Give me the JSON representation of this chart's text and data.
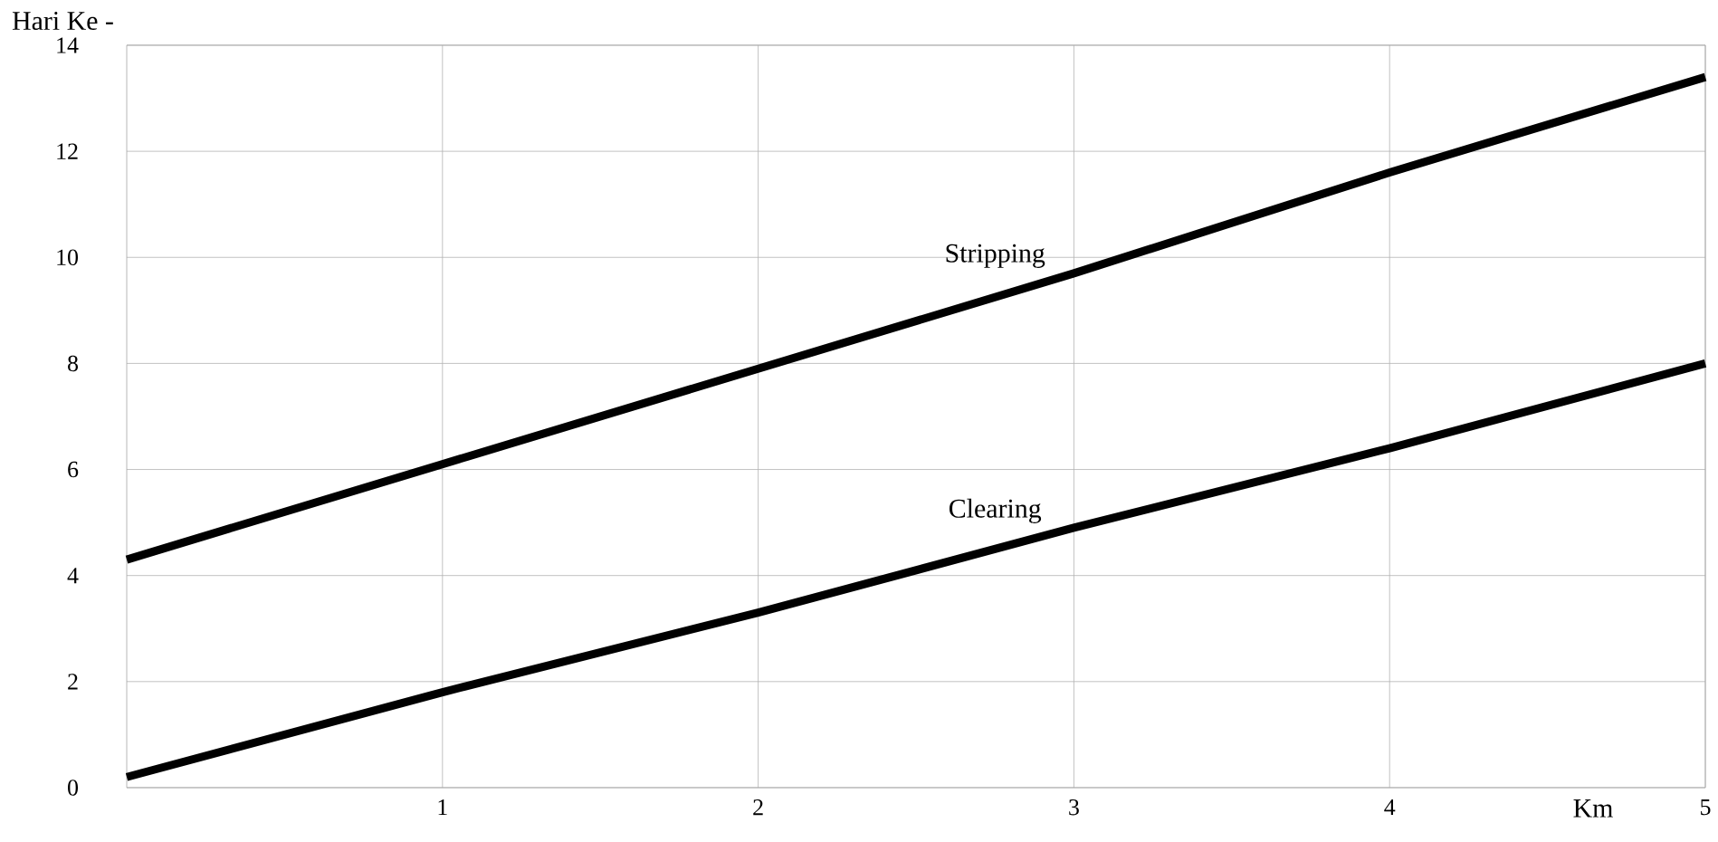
{
  "chart_data": {
    "type": "line",
    "xlabel": "Km",
    "ylabel": "Hari Ke -",
    "xlim": [
      0,
      5
    ],
    "ylim": [
      0,
      14
    ],
    "xticks": [
      1,
      2,
      3,
      4,
      5
    ],
    "yticks": [
      0,
      2,
      4,
      6,
      8,
      10,
      12,
      14
    ],
    "grid": true,
    "legend": false,
    "marker": "none",
    "line_style": "solid",
    "series": [
      {
        "name": "Stripping",
        "color": "#000000",
        "x": [
          0,
          1,
          2,
          3,
          4,
          5
        ],
        "values": [
          4.3,
          6.1,
          7.9,
          9.7,
          11.6,
          13.4
        ]
      },
      {
        "name": "Clearing",
        "color": "#000000",
        "x": [
          0,
          1,
          2,
          3,
          4,
          5
        ],
        "values": [
          0.2,
          1.8,
          3.3,
          4.9,
          6.4,
          8
        ]
      }
    ]
  }
}
